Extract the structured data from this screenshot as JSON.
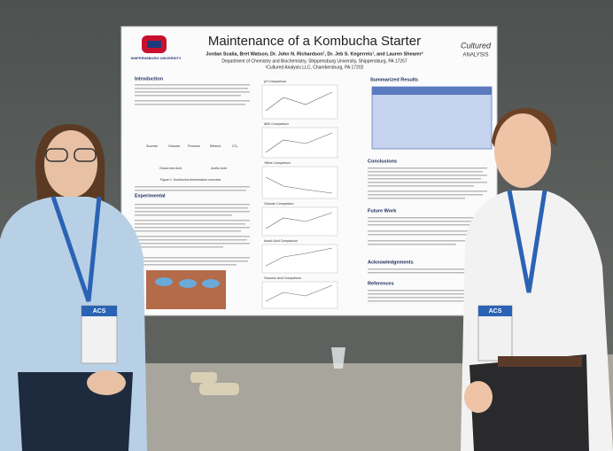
{
  "poster": {
    "title": "Maintenance of a Kombucha Starter",
    "authors": "Jordan Scalia, Bret Watson, Dr. John N. Richardson¹, Dr. Jeb S. Kegerreis¹, and Lauren Shearer²",
    "affiliation": "Department of Chemistry and Biochemistry, Shippensburg University, Shippensburg, PA 17257",
    "affiliation2": "²Cultured Analysis LLC, Chambersburg, PA 17202",
    "logo_left": "SHIPPENSBURG UNIVERSITY",
    "logo_right": [
      "Cultured",
      "ANALYSIS"
    ],
    "sections": [
      "Introduction",
      "Experimental",
      "Summarized Results",
      "Conclusions",
      "Future Work",
      "Acknowledgements",
      "References"
    ],
    "charts": [
      "pH Comparison",
      "ABV Comparison",
      "%Brix Comparison",
      "Glucose Comparison",
      "Acetic Acid Comparison",
      "Gluconic Acid Comparison"
    ],
    "figure_caption": "Figure 1. Kombucha fermentation overview",
    "scheme": [
      "Sucrose",
      "Glucose",
      "Fructose",
      "Ethanol",
      "CO₂",
      "Glucuronic Acid",
      "Acetic Acid"
    ]
  },
  "badges": [
    "ACS",
    "ACS"
  ]
}
